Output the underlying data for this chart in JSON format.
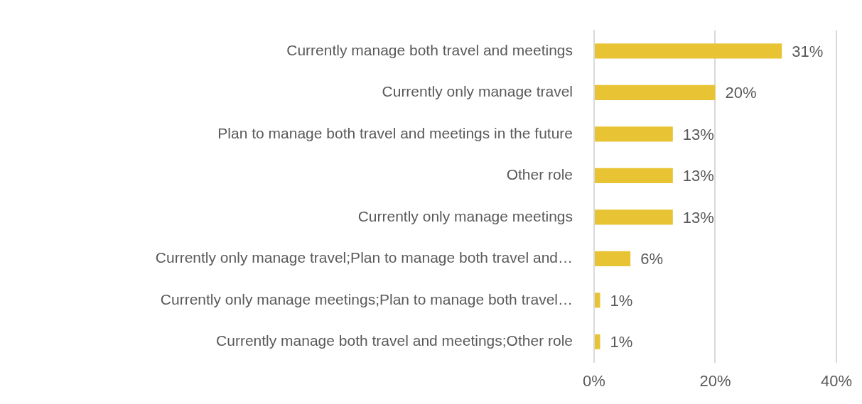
{
  "chart_data": {
    "type": "bar",
    "orientation": "horizontal",
    "categories": [
      "Currently manage both travel and meetings",
      "Currently only manage travel",
      "Plan to manage both travel and meetings in the future",
      "Other role",
      "Currently only manage meetings",
      "Currently only manage travel;Plan to manage both travel and…",
      "Currently only manage meetings;Plan to manage both travel…",
      "Currently manage both travel and meetings;Other role"
    ],
    "values": [
      31,
      20,
      13,
      13,
      13,
      6,
      1,
      1
    ],
    "value_labels": [
      "31%",
      "20%",
      "13%",
      "13%",
      "13%",
      "6%",
      "1%",
      "1%"
    ],
    "color": "#e8c435",
    "xlim": [
      0,
      40
    ],
    "xticks": [
      {
        "value": 0,
        "label": "0%"
      },
      {
        "value": 20,
        "label": "20%"
      },
      {
        "value": 40,
        "label": "40%"
      }
    ],
    "grid": "x",
    "legend": false
  }
}
